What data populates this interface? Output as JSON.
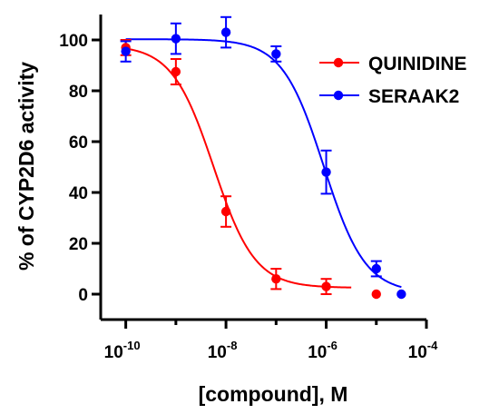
{
  "chart_data": {
    "type": "scatter",
    "title": "",
    "xlabel": "[compound], M",
    "ylabel": "% of CYP2D6 activity",
    "xscale": "log",
    "xlim": [
      3.16e-11,
      0.0001
    ],
    "ylim": [
      -10,
      110
    ],
    "grid": false,
    "legend_position": "top-right",
    "y_ticks": [
      0,
      20,
      40,
      60,
      80,
      100
    ],
    "x_ticks": [
      {
        "value": 1e-10,
        "base": "10",
        "exp": "-10"
      },
      {
        "value": 1e-08,
        "base": "10",
        "exp": "-8"
      },
      {
        "value": 1e-06,
        "base": "10",
        "exp": "-6"
      },
      {
        "value": 0.0001,
        "base": "10",
        "exp": "-4"
      }
    ],
    "series": [
      {
        "name": "QUINIDINE",
        "color": "#ff0000",
        "points": [
          {
            "x": 1e-10,
            "y": 97,
            "err": 3
          },
          {
            "x": 1e-09,
            "y": 87.5,
            "err": 5
          },
          {
            "x": 1e-08,
            "y": 32.5,
            "err": 6
          },
          {
            "x": 1e-07,
            "y": 6,
            "err": 4
          },
          {
            "x": 1e-06,
            "y": 3,
            "err": 3
          },
          {
            "x": 1e-05,
            "y": 0,
            "err": 0
          }
        ],
        "fit": {
          "top": 98,
          "bottom": 2.5,
          "log_ic50": -8.25,
          "hill": 1.05
        }
      },
      {
        "name": "SERAAK2",
        "color": "#0000ff",
        "points": [
          {
            "x": 1e-10,
            "y": 95.5,
            "err": 4
          },
          {
            "x": 1e-09,
            "y": 100.5,
            "err": 6
          },
          {
            "x": 1e-08,
            "y": 103,
            "err": 6
          },
          {
            "x": 1e-07,
            "y": 94.5,
            "err": 3
          },
          {
            "x": 1e-06,
            "y": 48,
            "err": 8.5
          },
          {
            "x": 1e-05,
            "y": 10,
            "err": 3
          },
          {
            "x": 3.16e-05,
            "y": 0,
            "err": 0
          }
        ],
        "fit": {
          "top": 100.3,
          "bottom": 0.5,
          "log_ic50": -6.05,
          "hill": 1.05
        }
      }
    ]
  }
}
